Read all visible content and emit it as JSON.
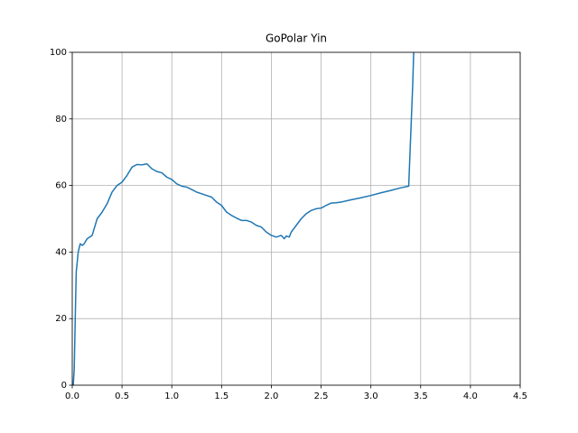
{
  "chart_data": {
    "type": "line",
    "title": "GoPolar Yin",
    "x": [
      0.01,
      0.02,
      0.03,
      0.04,
      0.06,
      0.08,
      0.1,
      0.12,
      0.15,
      0.2,
      0.25,
      0.3,
      0.35,
      0.4,
      0.45,
      0.5,
      0.55,
      0.6,
      0.65,
      0.7,
      0.75,
      0.8,
      0.85,
      0.9,
      0.95,
      1.0,
      1.05,
      1.1,
      1.15,
      1.2,
      1.25,
      1.3,
      1.35,
      1.4,
      1.45,
      1.5,
      1.55,
      1.6,
      1.65,
      1.7,
      1.75,
      1.8,
      1.85,
      1.9,
      1.95,
      2.0,
      2.05,
      2.1,
      2.13,
      2.15,
      2.18,
      2.2,
      2.25,
      2.3,
      2.35,
      2.4,
      2.45,
      2.5,
      2.55,
      2.6,
      2.65,
      2.7,
      2.8,
      2.9,
      3.0,
      3.1,
      3.2,
      3.3,
      3.38,
      3.4,
      3.42,
      3.43
    ],
    "series": [
      {
        "color": "#1f77b4",
        "values": [
          0,
          5,
          20,
          34,
          40,
          42.5,
          42,
          42.5,
          44,
          45,
          50,
          52,
          54.5,
          58,
          60,
          61,
          63,
          65.5,
          66.3,
          66.2,
          66.5,
          65,
          64.2,
          63.8,
          62.5,
          61.8,
          60.5,
          59.8,
          59.5,
          58.8,
          58,
          57.5,
          57,
          56.5,
          55,
          54,
          52,
          51,
          50.2,
          49.5,
          49.5,
          49,
          48,
          47.5,
          46,
          45,
          44.5,
          45,
          44,
          44.8,
          44.5,
          46,
          48,
          50,
          51.5,
          52.5,
          53,
          53.2,
          54,
          54.7,
          54.8,
          55,
          55.7,
          56.3,
          57,
          57.8,
          58.5,
          59.3,
          59.8,
          75,
          90,
          100
        ]
      }
    ],
    "xlim": [
      0,
      4.5
    ],
    "ylim": [
      0,
      100
    ],
    "xticks": [
      {
        "value": 0,
        "label": "0.0"
      },
      0.5,
      {
        "value": 1,
        "label": "1.0"
      },
      1.5,
      {
        "value": 2,
        "label": "2.0"
      },
      2.5,
      {
        "value": 3,
        "label": "3.0"
      },
      3.5,
      {
        "value": 4,
        "label": "4.0"
      },
      4.5
    ],
    "yticks": [
      0,
      20,
      40,
      60,
      80,
      100
    ],
    "grid": true
  }
}
